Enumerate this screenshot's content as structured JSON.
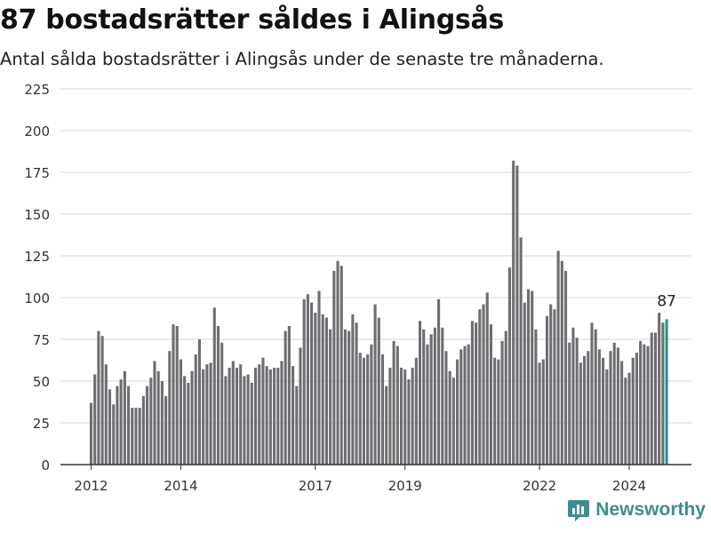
{
  "title": "87 bostadsrätter såldes i Alingsås",
  "subtitle": "Antal sålda bostadsrätter i Alingsås under de senaste tre månaderna.",
  "brand": {
    "name": "Newsworthy",
    "icon": "newsworthy-logo-icon"
  },
  "colors": {
    "bar": "#6e6e72",
    "highlight": "#1a9a8e",
    "grid": "#d9d9d9",
    "axis": "#333333"
  },
  "chart_data": {
    "type": "bar",
    "title": "87 bostadsrätter såldes i Alingsås",
    "subtitle": "Antal sålda bostadsrätter i Alingsås under de senaste tre månaderna.",
    "xlabel": "",
    "ylabel": "",
    "ylim": [
      0,
      225
    ],
    "yticks": [
      0,
      25,
      50,
      75,
      100,
      125,
      150,
      175,
      200,
      225
    ],
    "xticks": [
      "2012",
      "2014",
      "2017",
      "2019",
      "2022",
      "2024"
    ],
    "grid": true,
    "start": "2012-01",
    "frequency": "monthly",
    "values": [
      37,
      54,
      80,
      77,
      60,
      45,
      36,
      47,
      51,
      56,
      47,
      34,
      34,
      34,
      41,
      47,
      52,
      62,
      56,
      50,
      41,
      68,
      84,
      83,
      63,
      53,
      49,
      56,
      66,
      75,
      57,
      60,
      61,
      94,
      83,
      73,
      53,
      58,
      62,
      58,
      60,
      53,
      54,
      49,
      58,
      60,
      64,
      59,
      57,
      58,
      58,
      62,
      80,
      83,
      59,
      47,
      70,
      99,
      102,
      97,
      91,
      104,
      90,
      88,
      81,
      116,
      122,
      119,
      81,
      80,
      90,
      85,
      67,
      64,
      66,
      72,
      96,
      88,
      66,
      47,
      58,
      74,
      71,
      58,
      57,
      51,
      58,
      64,
      86,
      81,
      72,
      78,
      82,
      99,
      82,
      68,
      56,
      52,
      63,
      69,
      71,
      72,
      86,
      85,
      93,
      96,
      103,
      84,
      64,
      63,
      74,
      80,
      118,
      182,
      179,
      136,
      97,
      105,
      104,
      81,
      61,
      63,
      89,
      96,
      93,
      128,
      122,
      116,
      73,
      82,
      76,
      61,
      65,
      68,
      85,
      81,
      69,
      64,
      57,
      68,
      73,
      70,
      62,
      52,
      55,
      64,
      67,
      74,
      72,
      71,
      79,
      79,
      91,
      85,
      87
    ],
    "highlight_last": true,
    "annotation": {
      "label": "87",
      "value": 87
    }
  }
}
